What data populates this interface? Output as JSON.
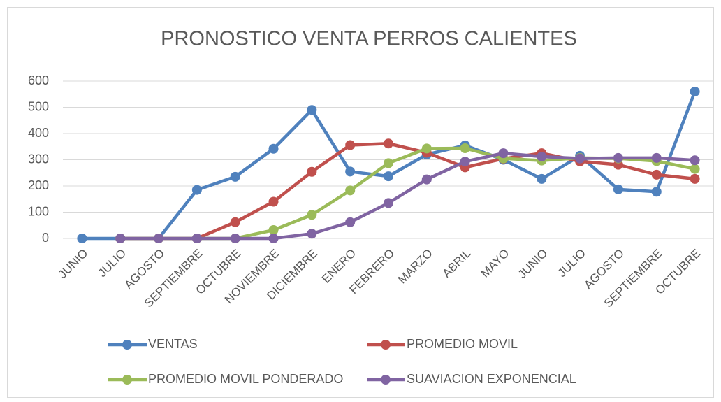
{
  "chart_data": {
    "type": "line",
    "title": "PRONOSTICO VENTA PERROS CALIENTES",
    "categories": [
      "JUNIO",
      "JULIO",
      "AGOSTO",
      "SEPTIEMBRE",
      "OCTUBRE",
      "NOVIEMBRE",
      "DICIEMBRE",
      "ENERO",
      "FEBRERO",
      "MARZO",
      "ABRIL",
      "MAYO",
      "JUNIO",
      "JULIO",
      "AGOSTO",
      "SEPTIEMBRE",
      "OCTUBRE"
    ],
    "series": [
      {
        "name": "VENTAS",
        "color": "#4f81bd",
        "values": [
          0,
          0,
          0,
          185,
          235,
          342,
          490,
          255,
          237,
          320,
          355,
          300,
          227,
          315,
          187,
          178,
          560
        ]
      },
      {
        "name": "PROMEDIO MOVIL",
        "color": "#c0504d",
        "values": [
          null,
          0,
          0,
          0,
          62,
          140,
          254,
          356,
          362,
          327,
          271,
          304,
          325,
          294,
          281,
          243,
          227
        ]
      },
      {
        "name": "PROMEDIO MOVIL PONDERADO",
        "color": "#9bbb59",
        "values": [
          null,
          0,
          0,
          0,
          0,
          32,
          90,
          183,
          287,
          343,
          344,
          305,
          297,
          307,
          305,
          295,
          265
        ]
      },
      {
        "name": "SUAVIACION EXPONENCIAL",
        "color": "#8064a2",
        "values": [
          null,
          0,
          0,
          0,
          0,
          0,
          18,
          62,
          135,
          225,
          293,
          325,
          312,
          305,
          307,
          307,
          298
        ]
      }
    ],
    "ylim": [
      0,
      600
    ],
    "yticks": [
      0,
      100,
      200,
      300,
      400,
      500,
      600
    ],
    "grid": true,
    "legend": "bottom"
  }
}
